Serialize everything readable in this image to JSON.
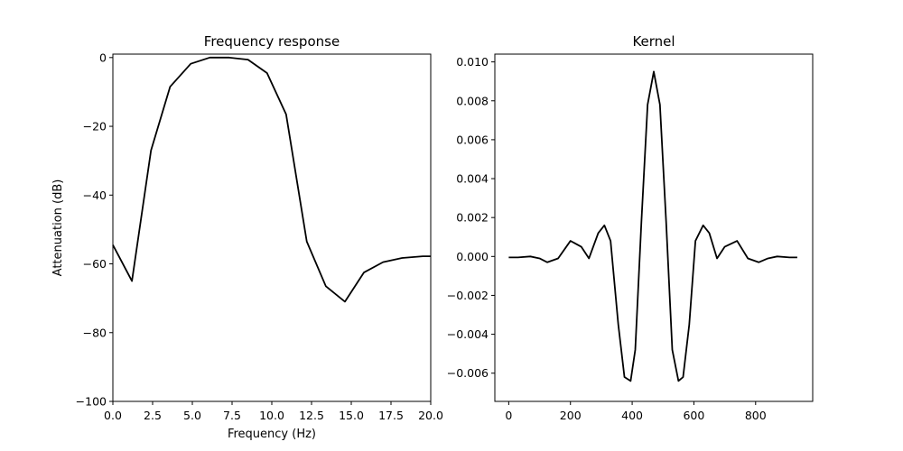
{
  "chart_data": [
    {
      "type": "line",
      "title": "Frequency response",
      "xlabel": "Frequency (Hz)",
      "ylabel": "Attenuation (dB)",
      "xlim": [
        0,
        20
      ],
      "ylim": [
        -100,
        1
      ],
      "xticks": [
        0.0,
        2.5,
        5.0,
        7.5,
        10.0,
        12.5,
        15.0,
        17.5,
        20.0
      ],
      "xtick_labels": [
        "0.0",
        "2.5",
        "5.0",
        "7.5",
        "10.0",
        "12.5",
        "15.0",
        "17.5",
        "20.0"
      ],
      "yticks": [
        0,
        -20,
        -40,
        -60,
        -80,
        -100
      ],
      "ytick_labels": [
        "0",
        "−20",
        "−40",
        "−60",
        "−80",
        "−100"
      ],
      "grid": false,
      "line_color": "#000000",
      "series": [
        {
          "x": [
            0.0,
            1.2,
            2.4,
            3.6,
            4.9,
            6.1,
            7.3,
            8.5,
            9.7,
            10.9,
            12.2,
            13.4,
            14.6,
            15.8,
            17.0,
            18.2,
            19.5,
            20.0
          ],
          "y": [
            -54.5,
            -65.0,
            -27.0,
            -8.5,
            -1.8,
            0.0,
            0.0,
            -0.6,
            -4.5,
            -16.5,
            -53.5,
            -66.5,
            -71.0,
            -62.5,
            -59.5,
            -58.3,
            -57.8,
            -57.8
          ]
        }
      ]
    },
    {
      "type": "line",
      "title": "Kernel",
      "xlabel": "",
      "ylabel": "",
      "xlim": [
        -45,
        985
      ],
      "ylim": [
        -0.00745,
        0.0104
      ],
      "xticks": [
        0,
        200,
        400,
        600,
        800
      ],
      "xtick_labels": [
        "0",
        "200",
        "400",
        "600",
        "800"
      ],
      "yticks": [
        0.01,
        0.008,
        0.006,
        0.004,
        0.002,
        0.0,
        -0.002,
        -0.004,
        -0.006
      ],
      "ytick_labels": [
        "0.010",
        "0.008",
        "0.006",
        "0.004",
        "0.002",
        "0.000",
        "−0.002",
        "−0.004",
        "−0.006"
      ],
      "grid": false,
      "line_color": "#000000",
      "series": [
        {
          "x": [
            0,
            30,
            70,
            100,
            125,
            160,
            200,
            235,
            260,
            290,
            310,
            330,
            355,
            375,
            395,
            410,
            430,
            450,
            470,
            490,
            510,
            530,
            550,
            565,
            585,
            605,
            630,
            650,
            675,
            700,
            740,
            775,
            810,
            840,
            870,
            910,
            935
          ],
          "y": [
            -5e-05,
            -5e-05,
            0.0,
            -0.0001,
            -0.0003,
            -0.0001,
            0.0008,
            0.0005,
            -0.0001,
            0.0012,
            0.0016,
            0.0008,
            -0.0035,
            -0.0062,
            -0.0064,
            -0.0048,
            0.0018,
            0.0078,
            0.0095,
            0.0078,
            0.0018,
            -0.0048,
            -0.0064,
            -0.0062,
            -0.0035,
            0.0008,
            0.0016,
            0.0012,
            -0.0001,
            0.0005,
            0.0008,
            -0.0001,
            -0.0003,
            -0.0001,
            0.0,
            -5e-05,
            -5e-05
          ]
        }
      ]
    }
  ]
}
